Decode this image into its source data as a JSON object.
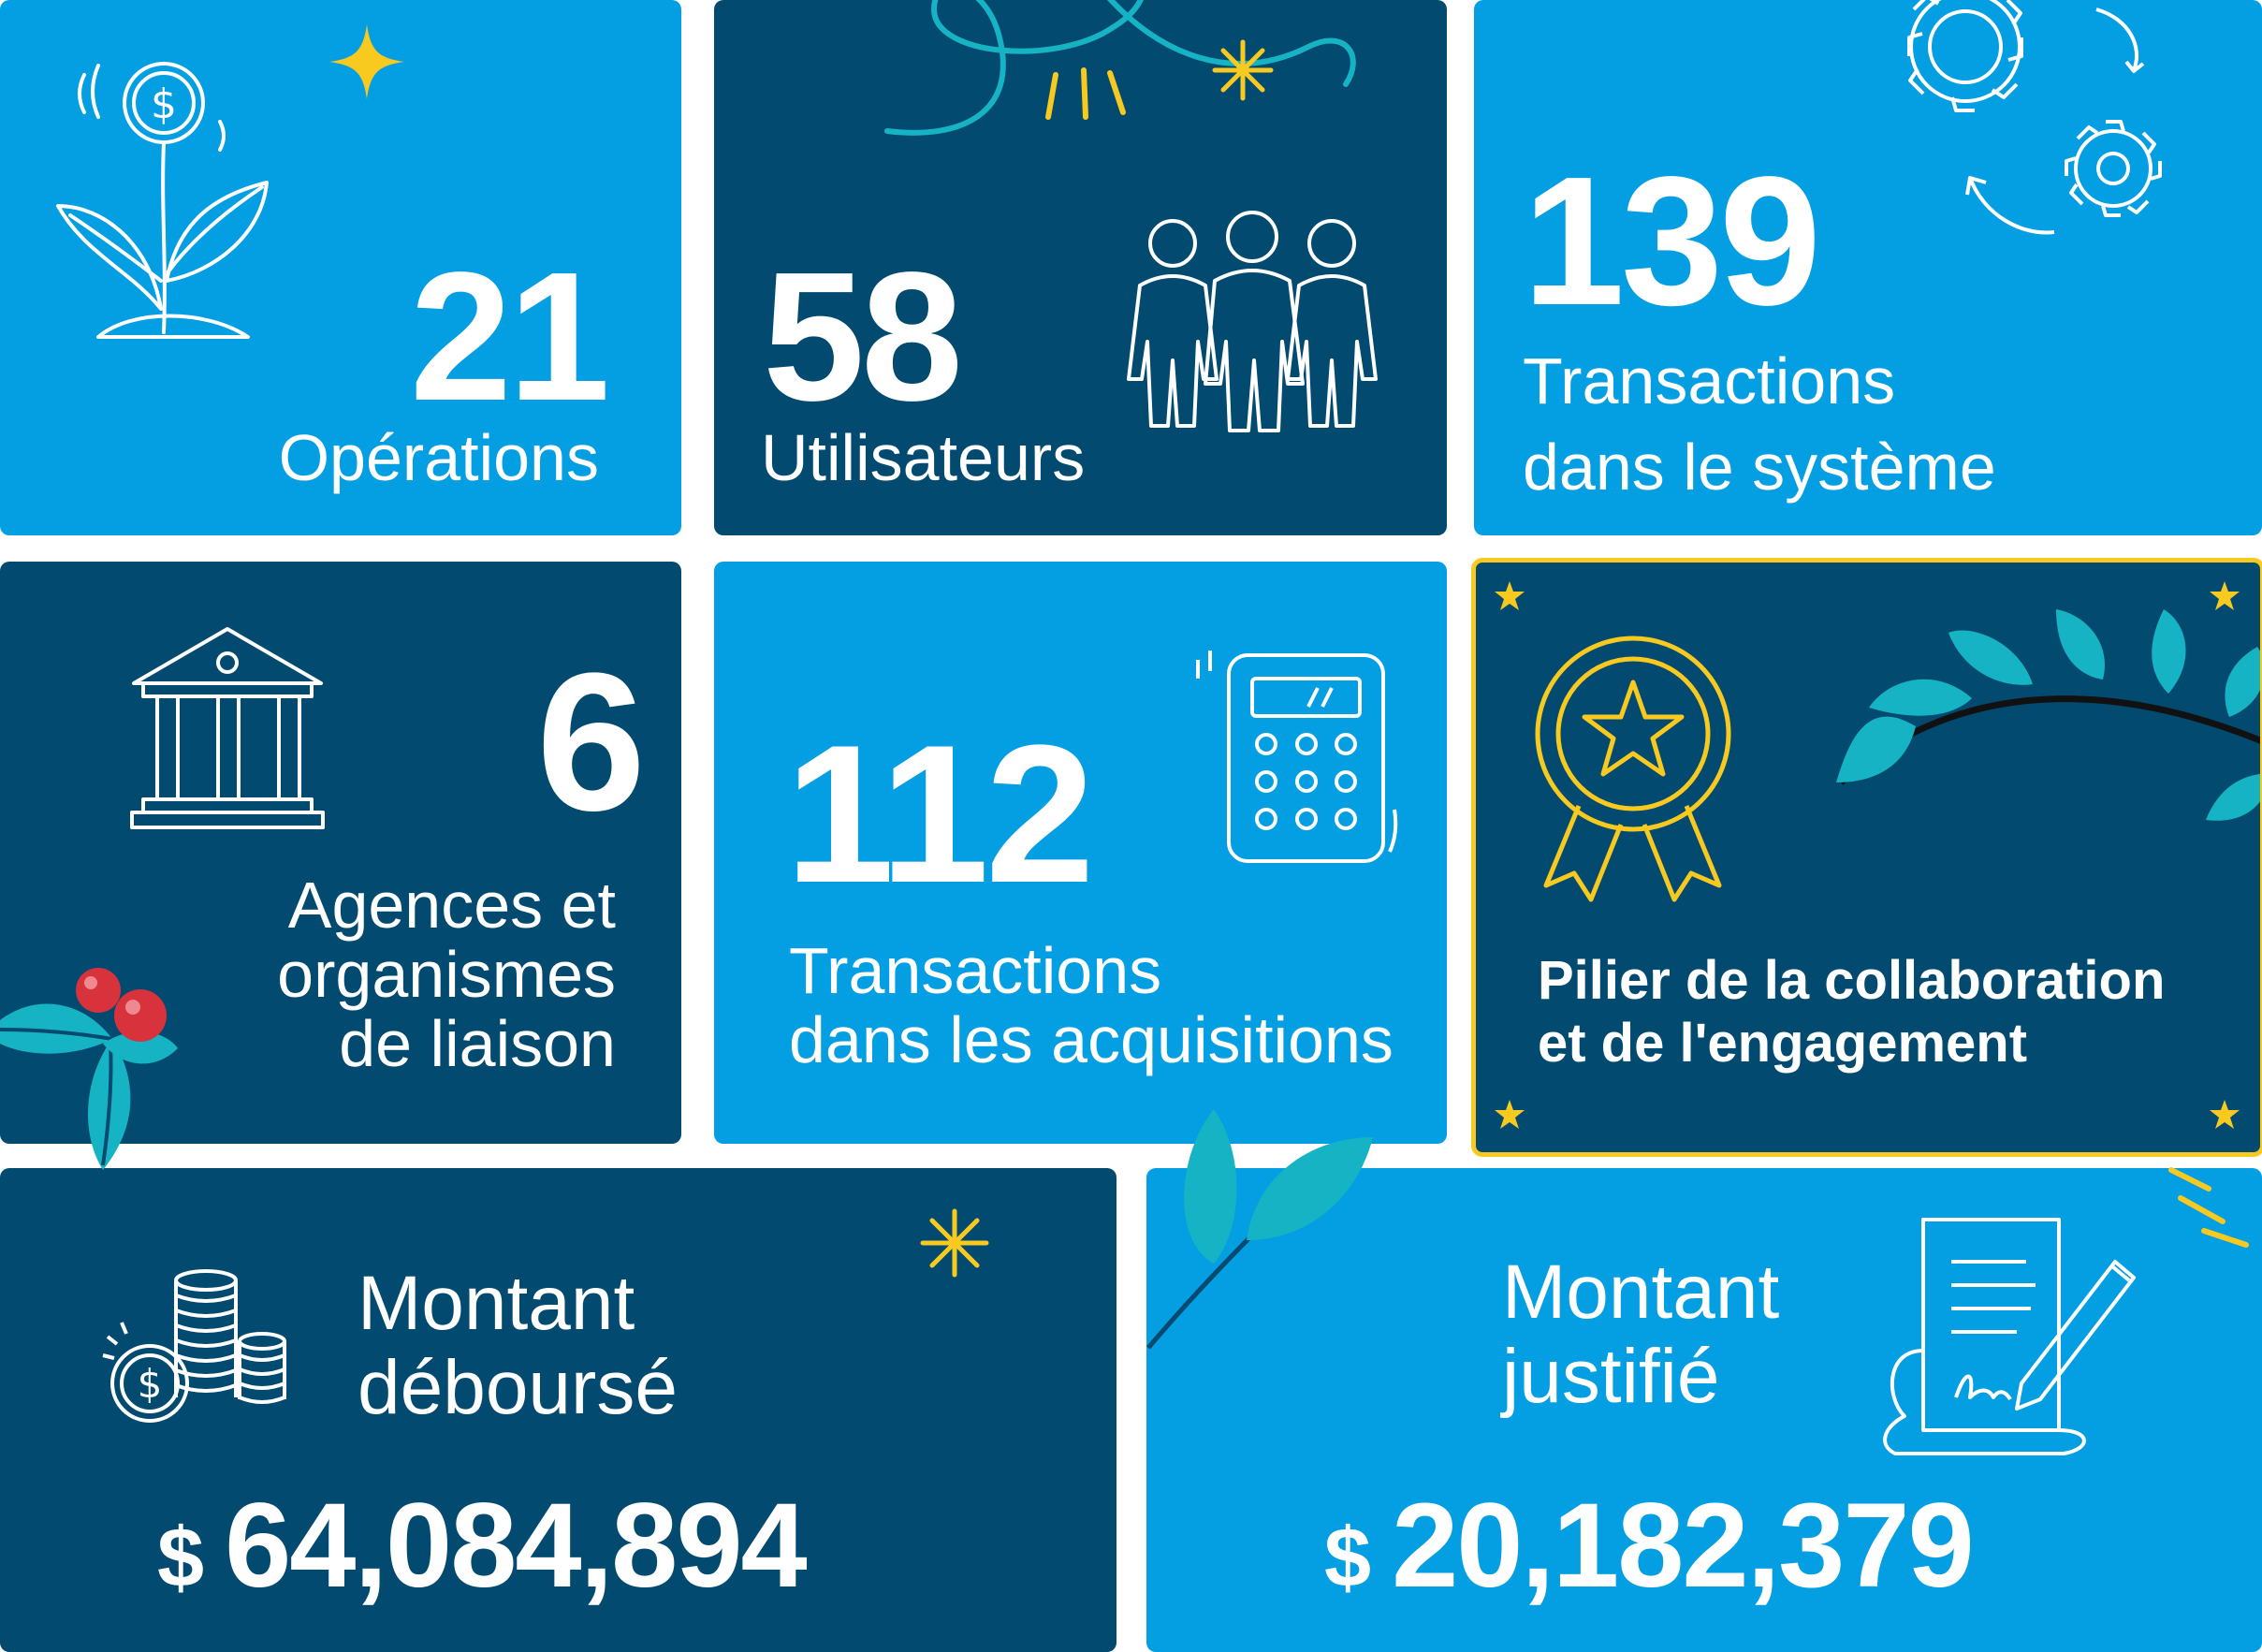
{
  "colors": {
    "light_card": "#049ee2",
    "dark_card": "#024a70",
    "accent_yellow": "#f8c91f",
    "leaf_teal": "#16b3c4",
    "berry_red": "#d8323c",
    "text": "#ffffff"
  },
  "stats": {
    "operations": {
      "value": "21",
      "label": "Opérations",
      "icon": "plant-coin-icon"
    },
    "users": {
      "value": "58",
      "label": "Utilisateurs",
      "icon": "people-icon"
    },
    "system_transactions": {
      "value": "139",
      "label_line1": "Transactions",
      "label_line2": "dans le système",
      "icon": "gears-icon"
    },
    "agencies": {
      "value": "6",
      "label_line1": "Agences et",
      "label_line2": "organismes",
      "label_line3": "de liaison",
      "icon": "bank-building-icon"
    },
    "acquisition_transactions": {
      "value": "112",
      "label_line1": "Transactions",
      "label_line2": "dans les acquisitions",
      "icon": "calculator-icon"
    }
  },
  "award": {
    "line1": "Pilier de la collaboration",
    "line2": "et de l'engagement",
    "icon": "medal-ribbon-icon"
  },
  "disbursed": {
    "title_line1": "Montant",
    "title_line2": "déboursé",
    "currency": "$",
    "amount": "64,084,894",
    "icon": "coin-stacks-icon"
  },
  "justified": {
    "title_line1": "Montant",
    "title_line2": "justifié",
    "currency": "$",
    "amount": "20,182,379",
    "icon": "signed-document-icon"
  }
}
